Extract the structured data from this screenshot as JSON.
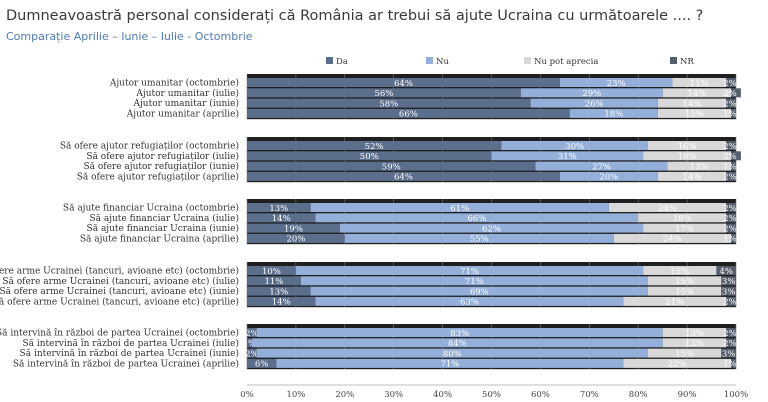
{
  "title": "Dumneavoastră personal considerați că România ar trebui să ajute Ucraina cu următoarele .... ?",
  "subtitle": "Comparație Aprilie – Iunie – Iulie - Octombrie",
  "colors": {
    "Da": "#5b6e8c",
    "Nu": "#94afd9",
    "Nu pot aprecia": "#d9d9d9",
    "NR": "#555e6c"
  },
  "chart_data": {
    "type": "bar",
    "orientation": "horizontal",
    "stacked": true,
    "percent_stacked": true,
    "title": "Dumneavoastră personal considerați că România ar trebui să ajute Ucraina cu următoarele .... ?",
    "subtitle": "Comparație Aprilie – Iunie – Iulie - Octombrie",
    "xlim": [
      0,
      100
    ],
    "x_ticks": [
      "0%",
      "10%",
      "20%",
      "30%",
      "40%",
      "50%",
      "60%",
      "70%",
      "80%",
      "90%",
      "100%"
    ],
    "legend_position": "top",
    "grid": true,
    "legend": [
      "Da",
      "Nu",
      "Nu pot aprecia",
      "NR"
    ],
    "groups": [
      {
        "rows": [
          {
            "label": "Ajutor umanitar (octombrie)",
            "values": [
              64,
              23,
              11,
              2
            ]
          },
          {
            "label": "Ajutor umanitar (iulie)",
            "values": [
              56,
              29,
              14,
              2
            ]
          },
          {
            "label": "Ajutor umanitar (iunie)",
            "values": [
              58,
              26,
              14,
              2
            ]
          },
          {
            "label": "Ajutor umanitar (aprilie)",
            "values": [
              66,
              18,
              15,
              1
            ]
          }
        ]
      },
      {
        "rows": [
          {
            "label": "Să ofere ajutor refugiaților (octombrie)",
            "values": [
              52,
              30,
              16,
              2
            ]
          },
          {
            "label": "Să ofere ajutor refugiaților (iulie)",
            "values": [
              50,
              31,
              18,
              2
            ]
          },
          {
            "label": "Să ofere ajutor refugiaților (iunie)",
            "values": [
              59,
              27,
              13,
              1
            ]
          },
          {
            "label": "Să ofere ajutor refugiaților (aprilie)",
            "values": [
              64,
              20,
              14,
              2
            ]
          }
        ]
      },
      {
        "rows": [
          {
            "label": "Să ajute financiar Ucraina (octombrie)",
            "values": [
              13,
              61,
              24,
              2
            ]
          },
          {
            "label": "Să ajute financiar Ucraina (iulie)",
            "values": [
              14,
              66,
              18,
              2
            ]
          },
          {
            "label": "Să ajute financiar Ucraina (iunie)",
            "values": [
              19,
              62,
              17,
              2
            ]
          },
          {
            "label": "Să ajute financiar Ucraina (aprilie)",
            "values": [
              20,
              55,
              24,
              1
            ]
          }
        ]
      },
      {
        "rows": [
          {
            "label": "Să ofere arme Ucrainei (tancuri, avioane etc) (octombrie)",
            "values": [
              10,
              71,
              15,
              4
            ]
          },
          {
            "label": "Să ofere arme Ucrainei (tancuri, avioane etc) (iulie)",
            "values": [
              11,
              71,
              15,
              3
            ]
          },
          {
            "label": "Să ofere arme Ucrainei (tancuri, avioane etc) (iunie)",
            "values": [
              13,
              69,
              15,
              3
            ]
          },
          {
            "label": "Să ofere arme Ucrainei (tancuri, avioane etc) (aprilie)",
            "values": [
              14,
              63,
              21,
              2
            ]
          }
        ]
      },
      {
        "rows": [
          {
            "label": "Să intervină în război de partea Ucrainei (octombrie)",
            "values": [
              2,
              83,
              13,
              2
            ]
          },
          {
            "label": "Să intervină în război de partea Ucrainei (iulie)",
            "values": [
              1,
              84,
              13,
              2
            ]
          },
          {
            "label": "Să intervină în război de partea Ucrainei (iunie)",
            "values": [
              2,
              80,
              15,
              3
            ]
          },
          {
            "label": "Să intervină în război de partea Ucrainei (aprilie)",
            "values": [
              6,
              71,
              22,
              1
            ]
          }
        ]
      }
    ]
  }
}
